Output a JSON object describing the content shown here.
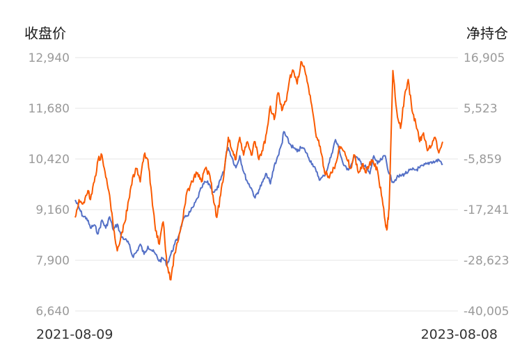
{
  "chart_data": {
    "type": "line",
    "left_axis_title": "收盘价",
    "right_axis_title": "净持仓",
    "x_start_label": "2021-08-09",
    "x_end_label": "2023-08-08",
    "x_start": "2021-08-09",
    "x_end": "2023-08-08",
    "left_ticks": [
      "12,940",
      "11,680",
      "10,420",
      "9,160",
      "7,900",
      "6,640"
    ],
    "right_ticks": [
      "16,905",
      "5,523",
      "-5,859",
      "-17,241",
      "-28,623",
      "-40,005"
    ],
    "left_range": [
      6640,
      12940
    ],
    "right_range": [
      -40005,
      16905
    ],
    "grid": true,
    "series": [
      {
        "axis": "left",
        "color": "#5470c6",
        "points": [
          [
            0,
            9400
          ],
          [
            0.01,
            9200
          ],
          [
            0.02,
            9000
          ],
          [
            0.03,
            8950
          ],
          [
            0.04,
            8700
          ],
          [
            0.05,
            8780
          ],
          [
            0.06,
            8560
          ],
          [
            0.07,
            8900
          ],
          [
            0.08,
            8700
          ],
          [
            0.09,
            8980
          ],
          [
            0.1,
            8650
          ],
          [
            0.11,
            8800
          ],
          [
            0.12,
            8500
          ],
          [
            0.13,
            8420
          ],
          [
            0.14,
            8310
          ],
          [
            0.15,
            8000
          ],
          [
            0.16,
            8100
          ],
          [
            0.17,
            8300
          ],
          [
            0.18,
            8050
          ],
          [
            0.19,
            8250
          ],
          [
            0.2,
            8150
          ],
          [
            0.21,
            8050
          ],
          [
            0.22,
            7880
          ],
          [
            0.23,
            7950
          ],
          [
            0.24,
            7800
          ],
          [
            0.25,
            8050
          ],
          [
            0.26,
            8300
          ],
          [
            0.27,
            8500
          ],
          [
            0.28,
            8850
          ],
          [
            0.29,
            8990
          ],
          [
            0.3,
            9100
          ],
          [
            0.31,
            9250
          ],
          [
            0.32,
            9450
          ],
          [
            0.33,
            9700
          ],
          [
            0.34,
            9850
          ],
          [
            0.35,
            9800
          ],
          [
            0.36,
            9600
          ],
          [
            0.37,
            9650
          ],
          [
            0.38,
            9900
          ],
          [
            0.39,
            10150
          ],
          [
            0.395,
            10600
          ],
          [
            0.4,
            10700
          ],
          [
            0.41,
            10450
          ],
          [
            0.42,
            10200
          ],
          [
            0.43,
            10500
          ],
          [
            0.44,
            10100
          ],
          [
            0.45,
            9850
          ],
          [
            0.46,
            9700
          ],
          [
            0.47,
            9450
          ],
          [
            0.48,
            9650
          ],
          [
            0.49,
            9850
          ],
          [
            0.5,
            10050
          ],
          [
            0.51,
            9800
          ],
          [
            0.52,
            10250
          ],
          [
            0.53,
            10500
          ],
          [
            0.54,
            10800
          ],
          [
            0.545,
            11100
          ],
          [
            0.55,
            11000
          ],
          [
            0.56,
            10800
          ],
          [
            0.57,
            10700
          ],
          [
            0.58,
            10600
          ],
          [
            0.59,
            10700
          ],
          [
            0.6,
            10650
          ],
          [
            0.61,
            10450
          ],
          [
            0.62,
            10300
          ],
          [
            0.63,
            10100
          ],
          [
            0.64,
            9900
          ],
          [
            0.65,
            10000
          ],
          [
            0.66,
            10200
          ],
          [
            0.67,
            10550
          ],
          [
            0.68,
            10900
          ],
          [
            0.69,
            10650
          ],
          [
            0.7,
            10300
          ],
          [
            0.71,
            10150
          ],
          [
            0.72,
            10250
          ],
          [
            0.73,
            10500
          ],
          [
            0.74,
            10400
          ],
          [
            0.75,
            10300
          ],
          [
            0.76,
            10200
          ],
          [
            0.77,
            10050
          ],
          [
            0.78,
            10500
          ],
          [
            0.79,
            10300
          ],
          [
            0.8,
            10400
          ],
          [
            0.81,
            10500
          ],
          [
            0.82,
            10050
          ],
          [
            0.83,
            9850
          ],
          [
            0.84,
            9950
          ],
          [
            0.85,
            10000
          ],
          [
            0.86,
            10050
          ],
          [
            0.87,
            10100
          ],
          [
            0.88,
            10150
          ],
          [
            0.89,
            10150
          ],
          [
            0.9,
            10200
          ],
          [
            0.91,
            10250
          ],
          [
            0.92,
            10300
          ],
          [
            0.93,
            10350
          ],
          [
            0.94,
            10350
          ],
          [
            0.95,
            10400
          ],
          [
            0.96,
            10300
          ]
        ]
      },
      {
        "axis": "right",
        "color": "#fa5a00",
        "points": [
          [
            0,
            -19000
          ],
          [
            0.01,
            -15000
          ],
          [
            0.02,
            -16000
          ],
          [
            0.03,
            -14000
          ],
          [
            0.035,
            -13000
          ],
          [
            0.04,
            -15000
          ],
          [
            0.05,
            -11000
          ],
          [
            0.06,
            -6000
          ],
          [
            0.07,
            -5000
          ],
          [
            0.08,
            -10000
          ],
          [
            0.09,
            -14000
          ],
          [
            0.1,
            -21500
          ],
          [
            0.11,
            -26500
          ],
          [
            0.12,
            -23000
          ],
          [
            0.13,
            -20000
          ],
          [
            0.14,
            -15000
          ],
          [
            0.15,
            -10000
          ],
          [
            0.16,
            -8000
          ],
          [
            0.17,
            -11000
          ],
          [
            0.18,
            -5000
          ],
          [
            0.19,
            -6000
          ],
          [
            0.2,
            -14000
          ],
          [
            0.21,
            -22000
          ],
          [
            0.22,
            -25000
          ],
          [
            0.23,
            -20000
          ],
          [
            0.24,
            -30000
          ],
          [
            0.25,
            -33000
          ],
          [
            0.26,
            -27000
          ],
          [
            0.27,
            -24000
          ],
          [
            0.28,
            -20000
          ],
          [
            0.29,
            -14000
          ],
          [
            0.3,
            -12000
          ],
          [
            0.31,
            -10000
          ],
          [
            0.32,
            -9000
          ],
          [
            0.33,
            -11000
          ],
          [
            0.34,
            -8000
          ],
          [
            0.35,
            -9000
          ],
          [
            0.36,
            -14000
          ],
          [
            0.37,
            -19000
          ],
          [
            0.38,
            -14000
          ],
          [
            0.39,
            -8000
          ],
          [
            0.4,
            -1000
          ],
          [
            0.41,
            -4000
          ],
          [
            0.42,
            -6000
          ],
          [
            0.43,
            -1000
          ],
          [
            0.44,
            -5000
          ],
          [
            0.45,
            -2000
          ],
          [
            0.46,
            -5000
          ],
          [
            0.47,
            -2000
          ],
          [
            0.48,
            -6000
          ],
          [
            0.49,
            -4000
          ],
          [
            0.5,
            0
          ],
          [
            0.51,
            6000
          ],
          [
            0.52,
            3000
          ],
          [
            0.53,
            9000
          ],
          [
            0.54,
            5000
          ],
          [
            0.55,
            7000
          ],
          [
            0.56,
            12000
          ],
          [
            0.57,
            14000
          ],
          [
            0.58,
            11000
          ],
          [
            0.59,
            16000
          ],
          [
            0.6,
            14000
          ],
          [
            0.61,
            10000
          ],
          [
            0.62,
            5000
          ],
          [
            0.63,
            -1000
          ],
          [
            0.64,
            -3000
          ],
          [
            0.65,
            -8000
          ],
          [
            0.66,
            -10000
          ],
          [
            0.67,
            -9000
          ],
          [
            0.68,
            -7000
          ],
          [
            0.69,
            -3000
          ],
          [
            0.7,
            -4000
          ],
          [
            0.71,
            -6000
          ],
          [
            0.72,
            -8000
          ],
          [
            0.73,
            -5000
          ],
          [
            0.74,
            -9000
          ],
          [
            0.75,
            -7000
          ],
          [
            0.76,
            -9000
          ],
          [
            0.77,
            -6500
          ],
          [
            0.78,
            -7000
          ],
          [
            0.79,
            -8500
          ],
          [
            0.8,
            -14000
          ],
          [
            0.81,
            -20000
          ],
          [
            0.815,
            -21500
          ],
          [
            0.82,
            -17000
          ],
          [
            0.83,
            14000
          ],
          [
            0.84,
            5000
          ],
          [
            0.85,
            1000
          ],
          [
            0.86,
            8000
          ],
          [
            0.87,
            12000
          ],
          [
            0.88,
            5000
          ],
          [
            0.89,
            2000
          ],
          [
            0.9,
            -2000
          ],
          [
            0.91,
            0
          ],
          [
            0.92,
            -4000
          ],
          [
            0.93,
            -3000
          ],
          [
            0.94,
            -1000
          ],
          [
            0.95,
            -4500
          ],
          [
            0.96,
            -2000
          ]
        ]
      }
    ]
  }
}
